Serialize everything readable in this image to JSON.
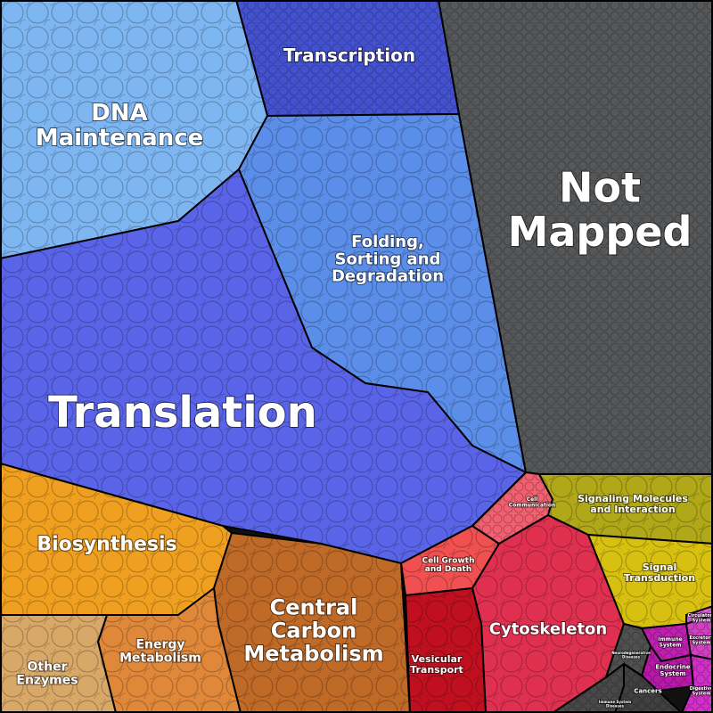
{
  "chart_data": {
    "type": "voronoi-treemap",
    "regions": [
      {
        "name": "Transcription",
        "lines": [
          "Transcription"
        ],
        "color": "#4552d0"
      },
      {
        "name": "DNA Maintenance",
        "lines": [
          "DNA",
          "Maintenance"
        ],
        "color": "#7eb6f2"
      },
      {
        "name": "Folding, Sorting and Degradation",
        "lines": [
          "Folding,",
          "Sorting and",
          "Degradation"
        ],
        "color": "#5b8ee8"
      },
      {
        "name": "Translation",
        "lines": [
          "Translation"
        ],
        "color": "#5a64e8"
      },
      {
        "name": "Not Mapped",
        "lines": [
          "Not",
          "Mapped"
        ],
        "color": "#555759"
      },
      {
        "name": "Biosynthesis",
        "lines": [
          "Biosynthesis"
        ],
        "color": "#f0a020"
      },
      {
        "name": "Central Carbon Metabolism",
        "lines": [
          "Central",
          "Carbon",
          "Metabolism"
        ],
        "color": "#c06a28"
      },
      {
        "name": "Energy Metabolism",
        "lines": [
          "Energy",
          "Metabolism"
        ],
        "color": "#e0883a"
      },
      {
        "name": "Other Enzymes",
        "lines": [
          "Other",
          "Enzymes"
        ],
        "color": "#d8a868"
      },
      {
        "name": "Cell Growth and Death",
        "lines": [
          "Cell Growth",
          "and Death"
        ],
        "color": "#f05050"
      },
      {
        "name": "Cell Communication",
        "lines": [
          "Cell",
          "Communication"
        ],
        "color": "#f06070"
      },
      {
        "name": "Cytoskeleton",
        "lines": [
          "Cytoskeleton"
        ],
        "color": "#e03050"
      },
      {
        "name": "Vesicular Transport",
        "lines": [
          "Vesicular",
          "Transport"
        ],
        "color": "#c01020"
      },
      {
        "name": "Signaling Molecules and Interaction",
        "lines": [
          "Signaling Molecules",
          "and Interaction"
        ],
        "color": "#b0a818"
      },
      {
        "name": "Signal Transduction",
        "lines": [
          "Signal",
          "Transduction"
        ],
        "color": "#d8c010"
      },
      {
        "name": "Immune System",
        "lines": [
          "Immune",
          "System"
        ],
        "color": "#c020b0"
      },
      {
        "name": "Excretory System",
        "lines": [
          "Excretory",
          "System"
        ],
        "color": "#d040c0"
      },
      {
        "name": "Circulatory System",
        "lines": [
          "Circulatory",
          "System"
        ],
        "color": "#e060d8"
      },
      {
        "name": "Endocrine System",
        "lines": [
          "Endocrine",
          "System"
        ],
        "color": "#b818a8"
      },
      {
        "name": "Digestive System",
        "lines": [
          "Digestive",
          "System"
        ],
        "color": "#d030c8"
      },
      {
        "name": "Cancers",
        "lines": [
          "Cancers"
        ],
        "color": "#404040"
      },
      {
        "name": "Neurodegenerative Diseases",
        "lines": [
          "Neurodegenerative",
          "Diseases"
        ],
        "color": "#505050"
      },
      {
        "name": "Immune System Diseases",
        "lines": [
          "Immune System",
          "Diseases"
        ],
        "color": "#484848"
      }
    ]
  }
}
